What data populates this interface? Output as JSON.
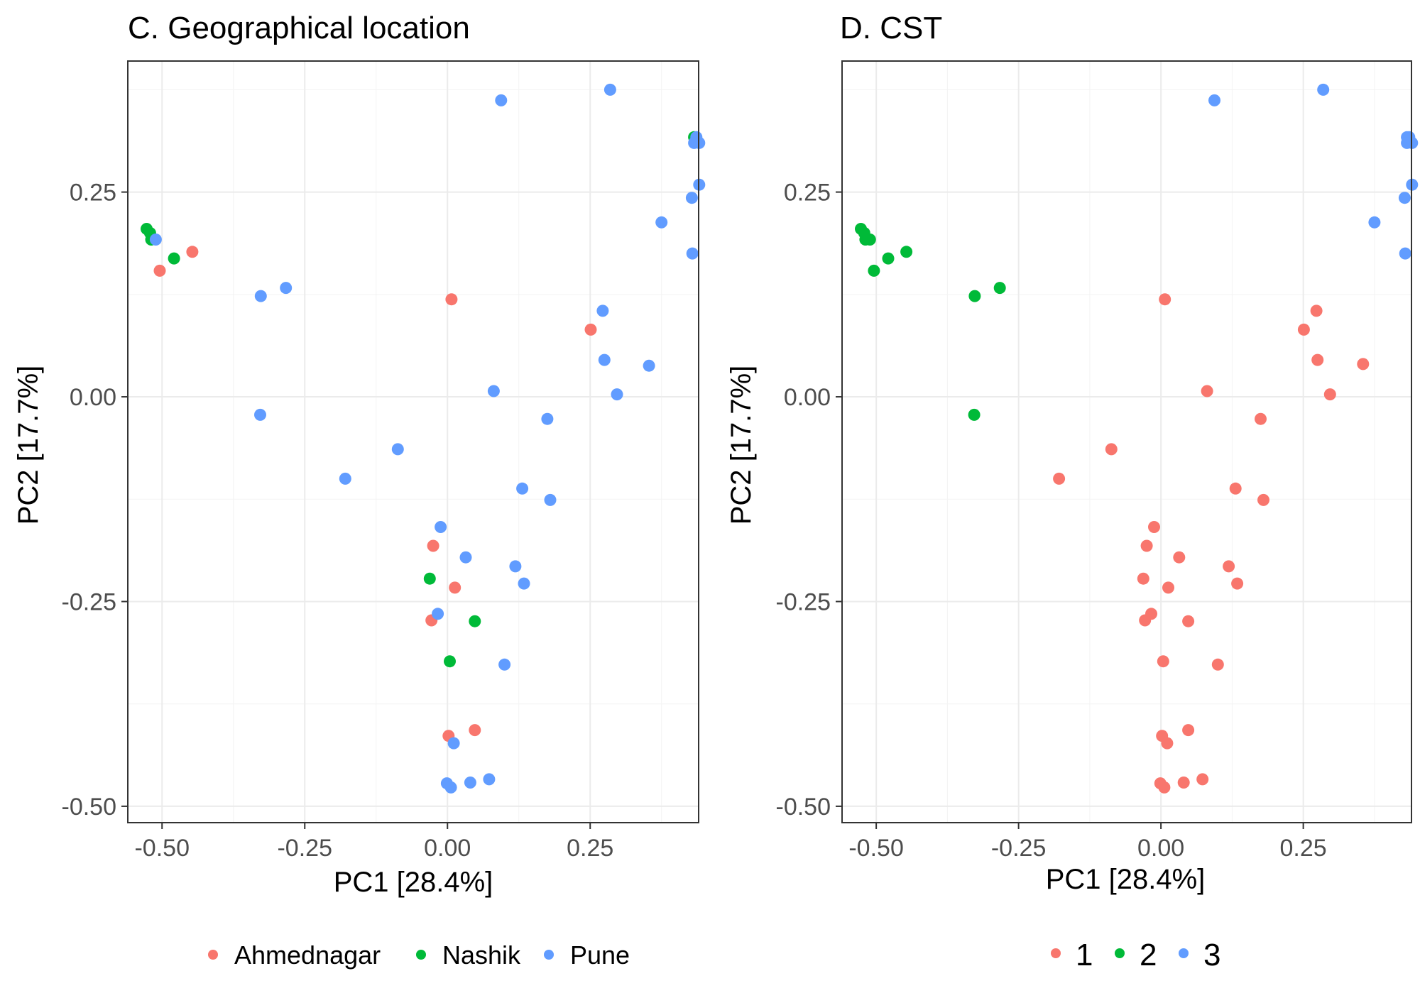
{
  "colors": {
    "Ahmednagar": "#F8766D",
    "Nashik": "#00BA38",
    "Pune": "#619CFF",
    "1": "#F8766D",
    "2": "#00BA38",
    "3": "#619CFF"
  },
  "chart_data": [
    {
      "type": "scatter",
      "title": "C. Geographical location",
      "xlabel": "PC1 [28.4%]",
      "ylabel": "PC2 [17.7%]",
      "xlim": [
        -0.56,
        0.44
      ],
      "ylim": [
        -0.52,
        0.41
      ],
      "xticks": [
        -0.5,
        -0.25,
        0.0,
        0.25
      ],
      "xtick_labels": [
        "-0.50",
        "-0.25",
        "0.00",
        "0.25"
      ],
      "yticks": [
        -0.5,
        -0.25,
        0.0,
        0.25
      ],
      "ytick_labels": [
        "-0.50",
        "-0.25",
        "0.00",
        "0.25"
      ],
      "grid": true,
      "legend_position": "bottom",
      "legend": [
        "Ahmednagar",
        "Nashik",
        "Pune"
      ],
      "series": [
        {
          "name": "Ahmednagar",
          "points": [
            [
              -0.504,
              0.154
            ],
            [
              -0.447,
              0.177
            ],
            [
              0.007,
              0.119
            ],
            [
              0.251,
              0.082
            ],
            [
              -0.025,
              -0.182
            ],
            [
              0.013,
              -0.233
            ],
            [
              -0.028,
              -0.273
            ],
            [
              0.002,
              -0.414
            ],
            [
              0.048,
              -0.407
            ]
          ]
        },
        {
          "name": "Nashik",
          "points": [
            [
              -0.527,
              0.205
            ],
            [
              -0.521,
              0.2
            ],
            [
              -0.519,
              0.192
            ],
            [
              -0.479,
              0.169
            ],
            [
              0.432,
              0.317
            ],
            [
              -0.031,
              -0.222
            ],
            [
              0.048,
              -0.274
            ],
            [
              0.004,
              -0.323
            ]
          ]
        },
        {
          "name": "Pune",
          "points": [
            [
              -0.511,
              0.192
            ],
            [
              0.094,
              0.362
            ],
            [
              0.285,
              0.375
            ],
            [
              0.436,
              0.317
            ],
            [
              0.432,
              0.31
            ],
            [
              0.441,
              0.31
            ],
            [
              0.441,
              0.259
            ],
            [
              0.428,
              0.243
            ],
            [
              0.375,
              0.213
            ],
            [
              0.429,
              0.175
            ],
            [
              -0.327,
              0.123
            ],
            [
              -0.283,
              0.133
            ],
            [
              0.272,
              0.105
            ],
            [
              0.275,
              0.045
            ],
            [
              0.353,
              0.038
            ],
            [
              0.081,
              0.007
            ],
            [
              0.297,
              0.003
            ],
            [
              -0.328,
              -0.022
            ],
            [
              0.175,
              -0.027
            ],
            [
              -0.087,
              -0.064
            ],
            [
              -0.179,
              -0.1
            ],
            [
              0.131,
              -0.112
            ],
            [
              0.18,
              -0.126
            ],
            [
              -0.012,
              -0.159
            ],
            [
              0.032,
              -0.196
            ],
            [
              0.119,
              -0.207
            ],
            [
              0.134,
              -0.228
            ],
            [
              -0.017,
              -0.265
            ],
            [
              0.1,
              -0.327
            ],
            [
              0.011,
              -0.423
            ],
            [
              -0.001,
              -0.472
            ],
            [
              0.006,
              -0.477
            ],
            [
              0.04,
              -0.471
            ],
            [
              0.073,
              -0.467
            ]
          ]
        }
      ]
    },
    {
      "type": "scatter",
      "title": "D. CST",
      "xlabel": "PC1 [28.4%]",
      "ylabel": "PC2 [17.7%]",
      "xlim": [
        -0.56,
        0.44
      ],
      "ylim": [
        -0.52,
        0.41
      ],
      "xticks": [
        -0.5,
        -0.25,
        0.0,
        0.25
      ],
      "xtick_labels": [
        "-0.50",
        "-0.25",
        "0.00",
        "0.25"
      ],
      "yticks": [
        -0.5,
        -0.25,
        0.0,
        0.25
      ],
      "ytick_labels": [
        "-0.50",
        "-0.25",
        "0.00",
        "0.25"
      ],
      "grid": true,
      "legend_position": "bottom",
      "legend": [
        "1",
        "2",
        "3"
      ],
      "series": [
        {
          "name": "1",
          "points": [
            [
              0.007,
              0.119
            ],
            [
              0.273,
              0.105
            ],
            [
              0.251,
              0.082
            ],
            [
              0.275,
              0.045
            ],
            [
              0.355,
              0.04
            ],
            [
              0.081,
              0.007
            ],
            [
              0.297,
              0.003
            ],
            [
              0.175,
              -0.027
            ],
            [
              -0.087,
              -0.064
            ],
            [
              -0.179,
              -0.1
            ],
            [
              0.131,
              -0.112
            ],
            [
              0.18,
              -0.126
            ],
            [
              -0.012,
              -0.159
            ],
            [
              -0.025,
              -0.182
            ],
            [
              0.032,
              -0.196
            ],
            [
              0.119,
              -0.207
            ],
            [
              0.134,
              -0.228
            ],
            [
              -0.031,
              -0.222
            ],
            [
              0.013,
              -0.233
            ],
            [
              -0.017,
              -0.265
            ],
            [
              -0.028,
              -0.273
            ],
            [
              0.048,
              -0.274
            ],
            [
              0.004,
              -0.323
            ],
            [
              0.1,
              -0.327
            ],
            [
              0.002,
              -0.414
            ],
            [
              0.048,
              -0.407
            ],
            [
              0.011,
              -0.423
            ],
            [
              -0.001,
              -0.472
            ],
            [
              0.006,
              -0.477
            ],
            [
              0.04,
              -0.471
            ],
            [
              0.073,
              -0.467
            ]
          ]
        },
        {
          "name": "2",
          "points": [
            [
              -0.527,
              0.205
            ],
            [
              -0.521,
              0.2
            ],
            [
              -0.519,
              0.192
            ],
            [
              -0.511,
              0.192
            ],
            [
              -0.479,
              0.169
            ],
            [
              -0.447,
              0.177
            ],
            [
              -0.504,
              0.154
            ],
            [
              -0.327,
              0.123
            ],
            [
              -0.283,
              0.133
            ],
            [
              -0.328,
              -0.022
            ]
          ]
        },
        {
          "name": "3",
          "points": [
            [
              0.094,
              0.362
            ],
            [
              0.285,
              0.375
            ],
            [
              0.432,
              0.317
            ],
            [
              0.436,
              0.317
            ],
            [
              0.432,
              0.31
            ],
            [
              0.441,
              0.31
            ],
            [
              0.441,
              0.259
            ],
            [
              0.428,
              0.243
            ],
            [
              0.375,
              0.213
            ],
            [
              0.429,
              0.175
            ]
          ]
        }
      ]
    }
  ]
}
